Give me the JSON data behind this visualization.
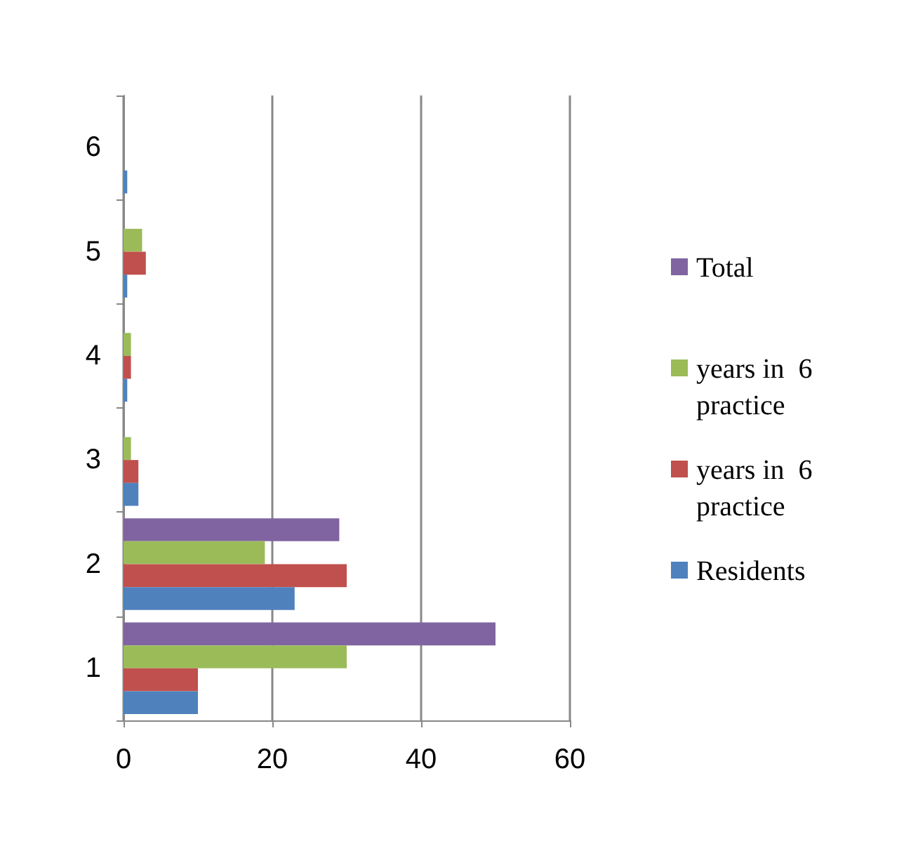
{
  "chart_data": {
    "type": "bar",
    "orientation": "horizontal",
    "categories": [
      "6",
      "5",
      "4",
      "3",
      "2",
      "1"
    ],
    "series": [
      {
        "name": "Total",
        "color": "#8064a2",
        "values": [
          null,
          null,
          null,
          null,
          29,
          50
        ]
      },
      {
        "name": "years in  6 practice",
        "color": "#9bbb59",
        "values": [
          null,
          2.5,
          1,
          1,
          19,
          30
        ]
      },
      {
        "name": "years in  6 practice",
        "color": "#c0504d",
        "values": [
          null,
          3,
          1,
          2,
          30,
          10
        ]
      },
      {
        "name": "Residents",
        "color": "#4f81bd",
        "values": [
          0.5,
          0.5,
          0.5,
          2,
          23,
          10
        ]
      }
    ],
    "xlim": [
      0,
      60
    ],
    "xticks": [
      0,
      20,
      40,
      60
    ],
    "grid": "x",
    "legend": "right"
  }
}
